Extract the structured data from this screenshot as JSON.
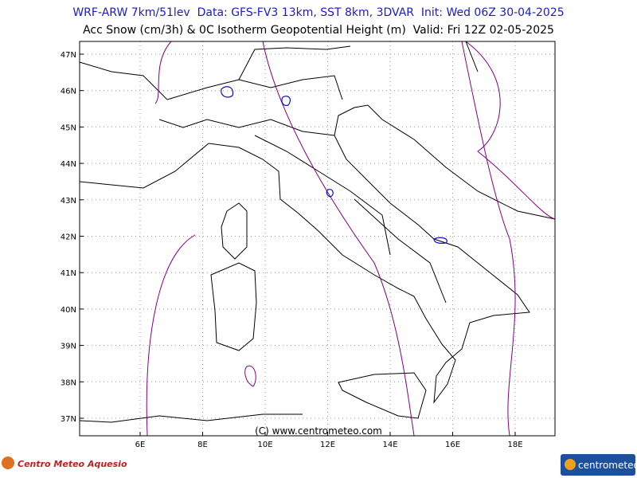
{
  "header": {
    "line1": "WRF-ARW 7km/51lev  Data: GFS-FV3 13km, SST 8km, 3DVAR  Init: Wed 06Z 30-04-2025",
    "line2": "Acc Snow (cm/3h) & 0C Isotherm Geopotential Height (m)  Valid: Fri 12Z 02-05-2025"
  },
  "map": {
    "lat_labels": [
      "47N",
      "46N",
      "45N",
      "44N",
      "43N",
      "42N",
      "41N",
      "40N",
      "39N",
      "38N",
      "37N"
    ],
    "lon_labels": [
      "6E",
      "8E",
      "10E",
      "12E",
      "14E",
      "16E",
      "18E"
    ],
    "copyright": "(C) www.centrometeo.com"
  },
  "footer": {
    "left_logo": "Centro Meteo Aquesio",
    "right_logo": "centrometeo"
  }
}
